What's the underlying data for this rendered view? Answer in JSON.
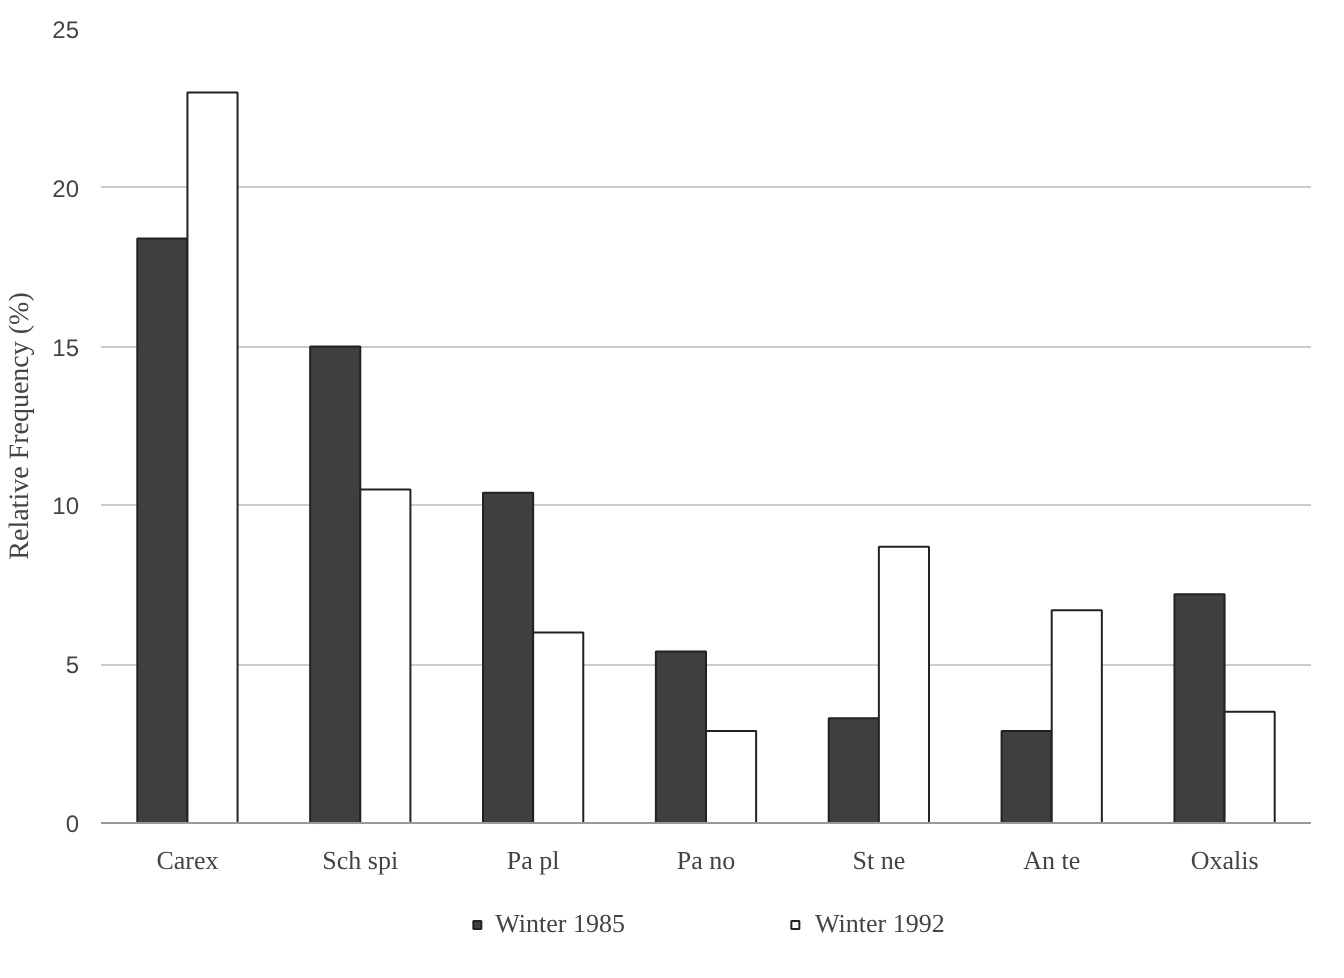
{
  "chart_data": {
    "type": "bar",
    "ylabel": "Relative Frequency (%)",
    "categories": [
      "Carex",
      "Sch spi",
      "Pa pl",
      "Pa no",
      "St ne",
      "An te",
      "Oxalis"
    ],
    "series": [
      {
        "name": "Winter 1985",
        "color": "#3d403d",
        "values": [
          18.4,
          15.0,
          10.4,
          5.4,
          3.3,
          2.9,
          7.2
        ]
      },
      {
        "name": "Winter 1992",
        "color": "#ffffff",
        "values": [
          23.0,
          10.5,
          6.0,
          2.9,
          8.7,
          6.7,
          3.5
        ]
      }
    ],
    "ylim": [
      0,
      25
    ],
    "yticks": [
      0,
      5,
      10,
      15,
      20,
      25
    ],
    "grid": "y",
    "legend": "bottom"
  }
}
